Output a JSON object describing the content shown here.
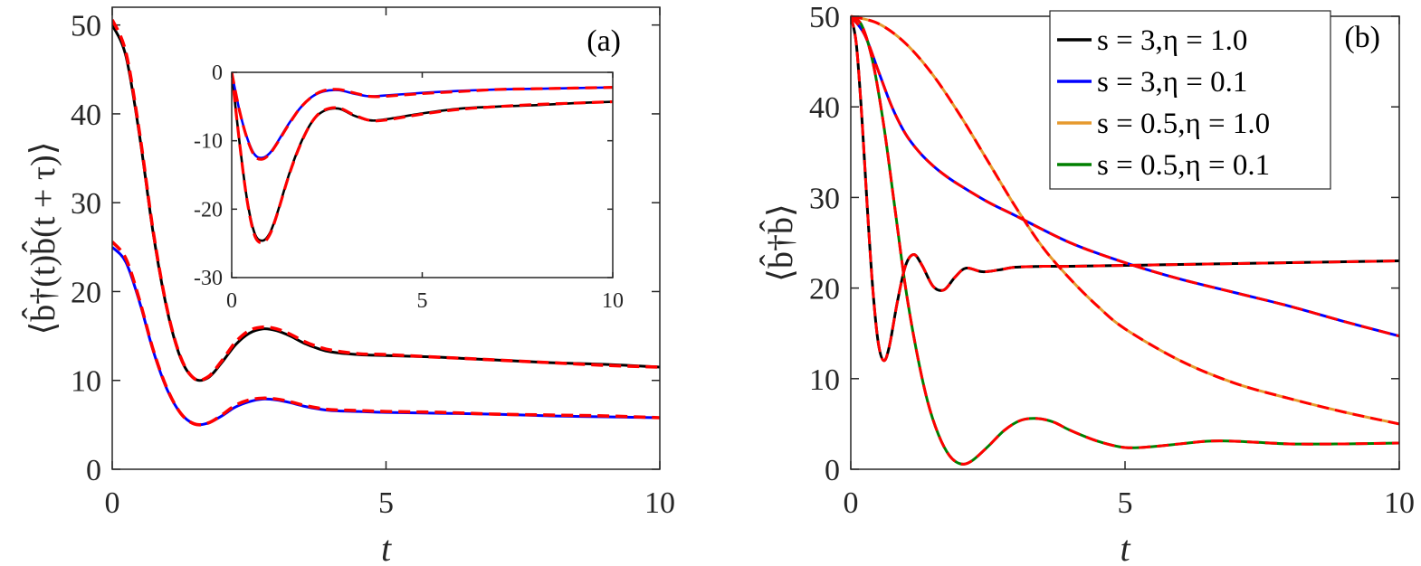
{
  "chart_data": [
    {
      "panel": "(a)",
      "type": "line",
      "xlabel": "t",
      "ylabel": "⟨b̂†(t)b̂(t + τ)⟩",
      "xlim": [
        0,
        10
      ],
      "ylim": [
        0,
        52
      ],
      "xticks": [
        "0",
        "5",
        "10"
      ],
      "yticks": [
        "0",
        "10",
        "20",
        "30",
        "40",
        "50"
      ],
      "colors": {
        "black": "#000000",
        "blue": "#0000ff",
        "red_dashed": "#ff0000"
      },
      "series": [
        {
          "color": "#000000",
          "style": "solid",
          "x": [
            0,
            0.25,
            0.5,
            0.75,
            1.0,
            1.25,
            1.5,
            1.75,
            2.0,
            2.25,
            2.5,
            2.75,
            3.0,
            3.25,
            3.5,
            3.75,
            4.0,
            4.5,
            5.0,
            6.0,
            7.0,
            8.0,
            9.0,
            10.0
          ],
          "y": [
            50,
            46.5,
            37.5,
            26.5,
            18,
            12.5,
            10.2,
            10.3,
            12,
            14,
            15.3,
            15.8,
            15.6,
            15,
            14.2,
            13.6,
            13.2,
            12.9,
            12.8,
            12.6,
            12.3,
            12.0,
            11.8,
            11.5
          ]
        },
        {
          "color": "#ff0000",
          "style": "dashed",
          "x": [
            0,
            0.25,
            0.5,
            0.75,
            1.0,
            1.25,
            1.5,
            1.75,
            2.0,
            2.25,
            2.5,
            2.75,
            3.0,
            3.25,
            3.5,
            3.75,
            4.0,
            4.5,
            5.0,
            6.0,
            7.0,
            8.0,
            9.0,
            10.0
          ],
          "y": [
            50.6,
            46.9,
            37.8,
            26.7,
            18.1,
            12.6,
            10.2,
            10.4,
            12.2,
            14.3,
            15.6,
            16.0,
            15.8,
            15.2,
            14.4,
            13.8,
            13.4,
            13.0,
            12.9,
            12.6,
            12.3,
            12.0,
            11.7,
            11.5
          ]
        },
        {
          "color": "#0000ff",
          "style": "solid",
          "x": [
            0,
            0.25,
            0.5,
            0.75,
            1.0,
            1.25,
            1.5,
            1.75,
            2.0,
            2.25,
            2.5,
            2.75,
            3.0,
            3.25,
            3.5,
            3.75,
            4.0,
            4.5,
            5.0,
            6.0,
            7.0,
            8.0,
            9.0,
            10.0
          ],
          "y": [
            25,
            23.3,
            18.8,
            13.3,
            9.0,
            6.3,
            5.1,
            5.2,
            6.0,
            7.0,
            7.6,
            7.9,
            7.8,
            7.5,
            7.1,
            6.8,
            6.6,
            6.5,
            6.4,
            6.3,
            6.2,
            6.0,
            5.9,
            5.8
          ]
        },
        {
          "color": "#ff0000",
          "style": "dashed",
          "x": [
            0,
            0.25,
            0.5,
            0.75,
            1.0,
            1.25,
            1.5,
            1.75,
            2.0,
            2.25,
            2.5,
            2.75,
            3.0,
            3.25,
            3.5,
            3.75,
            4.0,
            4.5,
            5.0,
            6.0,
            7.0,
            8.0,
            9.0,
            10.0
          ],
          "y": [
            25.6,
            23.7,
            19.0,
            13.4,
            9.1,
            6.3,
            5.1,
            5.2,
            6.1,
            7.2,
            7.8,
            8.0,
            7.9,
            7.6,
            7.2,
            6.9,
            6.7,
            6.6,
            6.5,
            6.4,
            6.2,
            6.1,
            6.0,
            5.8
          ]
        }
      ],
      "inset": {
        "xlim": [
          0,
          10
        ],
        "ylim": [
          -30,
          0
        ],
        "xticks": [
          "0",
          "5",
          "10"
        ],
        "yticks": [
          "0",
          "-10",
          "-20",
          "-30"
        ],
        "series": [
          {
            "color": "#000000",
            "style": "solid",
            "x": [
              0,
              0.2,
              0.4,
              0.6,
              0.8,
              1.0,
              1.2,
              1.5,
              1.8,
              2.1,
              2.4,
              2.8,
              3.2,
              3.6,
              4.0,
              5.0,
              6.0,
              7.0,
              8.0,
              9.0,
              10.0
            ],
            "y": [
              0,
              -10,
              -18.5,
              -23.5,
              -24.6,
              -23.5,
              -20.5,
              -15,
              -10.5,
              -7.3,
              -5.7,
              -5.3,
              -6.3,
              -7.0,
              -6.9,
              -6.0,
              -5.3,
              -5.0,
              -4.8,
              -4.5,
              -4.3
            ]
          },
          {
            "color": "#ff0000",
            "style": "dashed",
            "x": [
              0,
              0.2,
              0.4,
              0.6,
              0.8,
              1.0,
              1.2,
              1.5,
              1.8,
              2.1,
              2.4,
              2.8,
              3.2,
              3.6,
              4.0,
              5.0,
              6.0,
              7.0,
              8.0,
              9.0,
              10.0
            ],
            "y": [
              0,
              -10,
              -18.6,
              -23.8,
              -24.9,
              -23.7,
              -20.6,
              -15.1,
              -10.6,
              -7.3,
              -5.6,
              -5.2,
              -6.2,
              -7.0,
              -7.0,
              -6.1,
              -5.4,
              -5.0,
              -4.7,
              -4.5,
              -4.3
            ]
          },
          {
            "color": "#0000ff",
            "style": "solid",
            "x": [
              0,
              0.2,
              0.4,
              0.6,
              0.8,
              1.0,
              1.2,
              1.5,
              1.8,
              2.1,
              2.4,
              2.8,
              3.2,
              3.6,
              4.0,
              5.0,
              6.0,
              7.0,
              8.0,
              9.0,
              10.0
            ],
            "y": [
              0,
              -5.5,
              -9.5,
              -12.0,
              -12.5,
              -11.8,
              -10.2,
              -7.5,
              -5.2,
              -3.6,
              -2.8,
              -2.6,
              -3.1,
              -3.5,
              -3.4,
              -3.0,
              -2.7,
              -2.5,
              -2.4,
              -2.3,
              -2.2
            ]
          },
          {
            "color": "#ff0000",
            "style": "dashed",
            "x": [
              0,
              0.2,
              0.4,
              0.6,
              0.8,
              1.0,
              1.2,
              1.5,
              1.8,
              2.1,
              2.4,
              2.8,
              3.2,
              3.6,
              4.0,
              5.0,
              6.0,
              7.0,
              8.0,
              9.0,
              10.0
            ],
            "y": [
              0,
              -5.5,
              -9.6,
              -12.2,
              -12.7,
              -11.9,
              -10.3,
              -7.6,
              -5.2,
              -3.6,
              -2.7,
              -2.5,
              -3.0,
              -3.5,
              -3.5,
              -3.1,
              -2.8,
              -2.5,
              -2.4,
              -2.3,
              -2.2
            ]
          }
        ]
      }
    },
    {
      "panel": "(b)",
      "type": "line",
      "xlabel": "t",
      "ylabel": "⟨b̂†b̂⟩",
      "xlim": [
        0,
        10
      ],
      "ylim": [
        0,
        50
      ],
      "xticks": [
        "0",
        "5",
        "10"
      ],
      "yticks": [
        "0",
        "10",
        "20",
        "30",
        "40",
        "50"
      ],
      "legend_position": "top-right",
      "series": [
        {
          "name": "s = 3,η = 1.0",
          "color": "#000000",
          "style": "solid",
          "x": [
            0,
            0.1,
            0.2,
            0.3,
            0.4,
            0.5,
            0.6,
            0.7,
            0.85,
            1.0,
            1.15,
            1.3,
            1.5,
            1.7,
            1.9,
            2.1,
            2.4,
            2.7,
            3.0,
            3.5,
            4.0,
            5.0,
            6.0,
            7.0,
            8.0,
            9.0,
            10.0
          ],
          "y": [
            50,
            47,
            39,
            29,
            20,
            14,
            12,
            13.5,
            18.5,
            22.5,
            23.7,
            22.5,
            20.2,
            19.8,
            21.2,
            22.2,
            21.8,
            22.0,
            22.3,
            22.4,
            22.4,
            22.5,
            22.6,
            22.7,
            22.8,
            22.9,
            23.0
          ]
        },
        {
          "name": "s = 3,η = 0.1",
          "color": "#0000ff",
          "style": "solid",
          "x": [
            0,
            0.25,
            0.5,
            0.75,
            1.0,
            1.25,
            1.5,
            1.75,
            2.0,
            2.5,
            3.0,
            4.0,
            5.0,
            6.0,
            7.0,
            8.0,
            9.0,
            10.0
          ],
          "y": [
            50,
            48,
            44,
            40,
            37,
            35,
            33.5,
            32.3,
            31.3,
            29.5,
            28,
            25,
            22.8,
            21,
            19.5,
            18,
            16.3,
            14.7
          ]
        },
        {
          "name": "s = 0.5,η = 1.0",
          "color": "#e69a2e",
          "style": "solid",
          "x": [
            0,
            0.5,
            1.0,
            1.5,
            2.0,
            2.5,
            3.0,
            3.5,
            4.0,
            4.5,
            5.0,
            6.0,
            7.0,
            8.0,
            9.0,
            10.0
          ],
          "y": [
            50,
            49.2,
            47,
            43.5,
            39,
            34,
            29,
            24.5,
            21,
            18,
            15.5,
            12,
            9.5,
            7.8,
            6.3,
            5
          ]
        },
        {
          "name": "s = 0.5,η = 0.1",
          "color": "#008000",
          "style": "solid",
          "x": [
            0,
            0.2,
            0.4,
            0.6,
            0.8,
            1.0,
            1.2,
            1.4,
            1.6,
            1.8,
            2.0,
            2.2,
            2.5,
            2.8,
            3.1,
            3.4,
            3.7,
            4.0,
            4.5,
            5.0,
            5.5,
            6.0,
            6.5,
            7.0,
            8.0,
            9.0,
            10.0
          ],
          "y": [
            50,
            49,
            45,
            38,
            29,
            20,
            13,
            7.5,
            3.8,
            1.5,
            0.6,
            0.9,
            2.5,
            4.3,
            5.4,
            5.6,
            5.2,
            4.3,
            3.1,
            2.4,
            2.5,
            2.8,
            3.1,
            3.1,
            2.8,
            2.8,
            2.9
          ]
        }
      ],
      "dashed_overlay_color": "#ff0000"
    }
  ]
}
